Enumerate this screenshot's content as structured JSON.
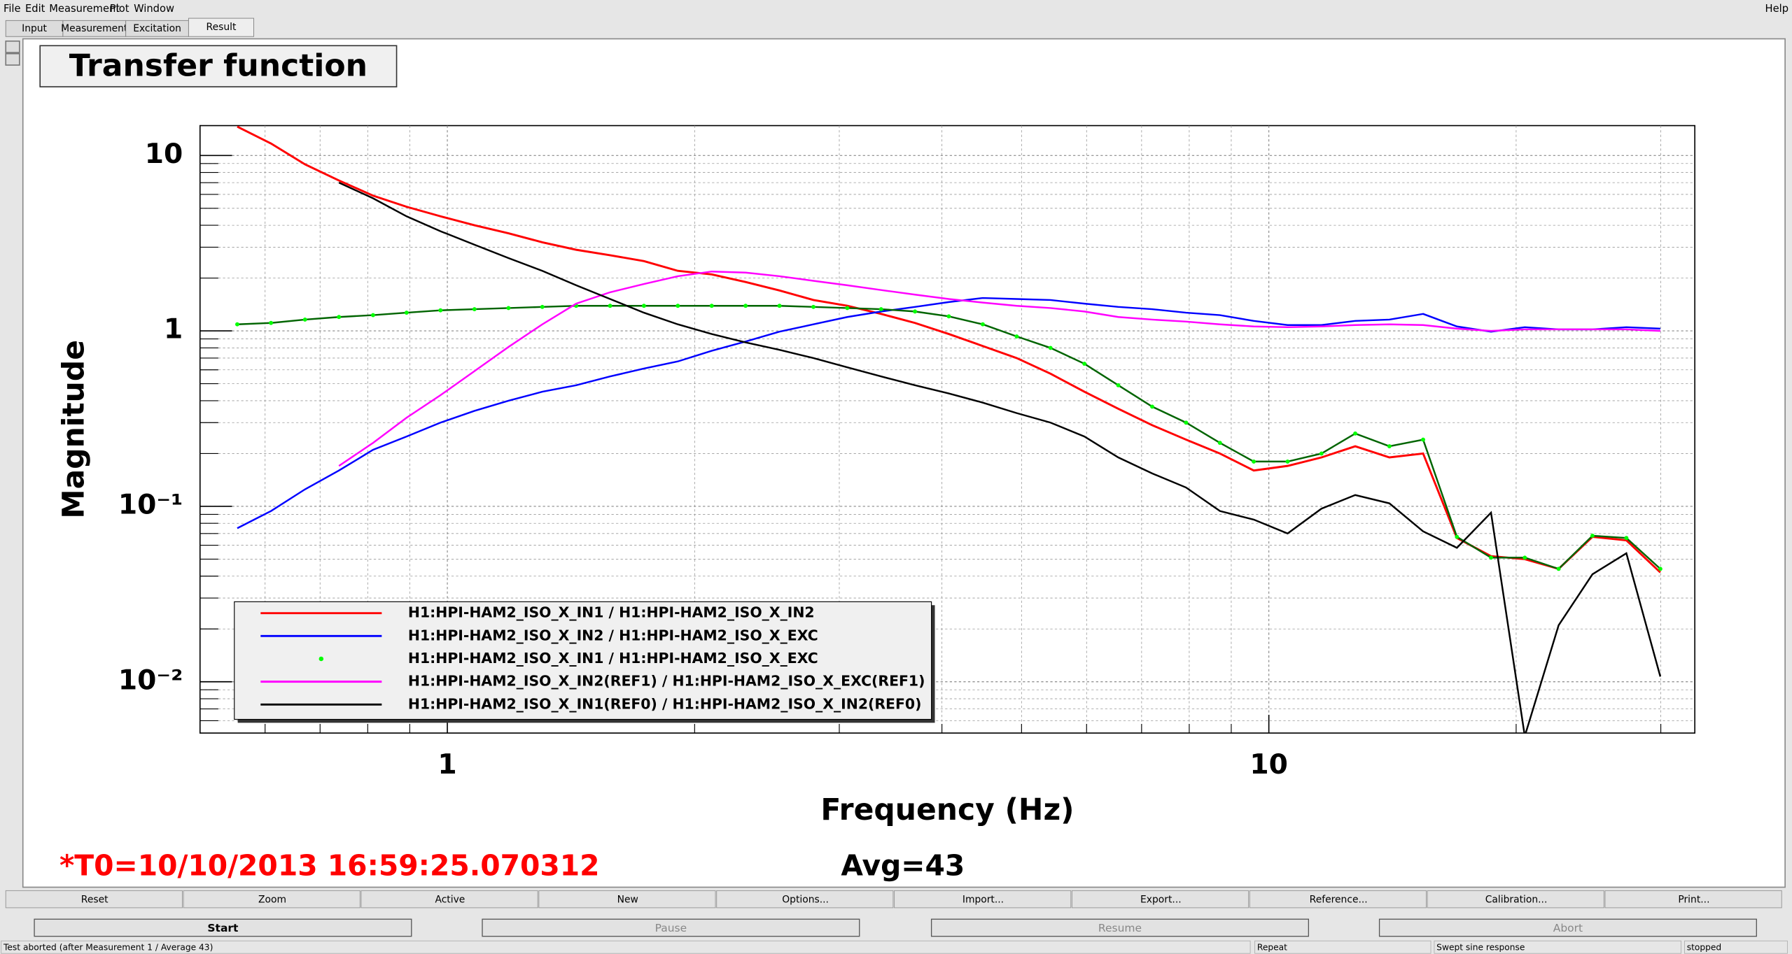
{
  "menu": [
    "File",
    "Edit",
    "Measurement",
    "Plot",
    "Window",
    "Help"
  ],
  "tabs": [
    "Input",
    "Measurement",
    "Excitation",
    "Result"
  ],
  "panel_title": "Transfer function",
  "chart_data": {
    "type": "line",
    "xlabel": "Frequency (Hz)",
    "ylabel": "Magnitude",
    "log_x": true,
    "log_y": true,
    "grid": true,
    "legend": "bottom-left",
    "xlim": [
      0.5,
      33
    ],
    "ylim": [
      0.0051,
      14.8
    ],
    "xticks": [
      1,
      10
    ],
    "yticks": [
      10,
      1,
      {
        "value": 0.1,
        "label": "10⁻¹"
      },
      {
        "value": 0.01,
        "label": "10⁻²"
      }
    ],
    "x": [
      0.555,
      0.61,
      0.671,
      0.738,
      0.812,
      0.892,
      0.981,
      1.079,
      1.187,
      1.305,
      1.435,
      1.578,
      1.735,
      1.908,
      2.098,
      2.307,
      2.537,
      2.79,
      3.068,
      3.373,
      3.709,
      4.078,
      4.485,
      4.932,
      5.423,
      5.963,
      6.557,
      7.211,
      7.929,
      8.719,
      9.586,
      10.54,
      11.59,
      12.74,
      14.02,
      15.41,
      16.94,
      18.64,
      20.49,
      22.53,
      24.77,
      27.24,
      29.96
    ],
    "series": [
      {
        "name": "H1:HPI-HAM2_ISO_X_IN1 / H1:HPI-HAM2_ISO_X_IN2",
        "color": "#ff0000",
        "values": [
          14.6,
          11.7,
          8.9,
          7.2,
          5.9,
          5.1,
          4.5,
          4.0,
          3.6,
          3.2,
          2.9,
          2.7,
          2.5,
          2.2,
          2.1,
          1.9,
          1.7,
          1.5,
          1.39,
          1.25,
          1.11,
          0.96,
          0.82,
          0.7,
          0.57,
          0.45,
          0.36,
          0.29,
          0.24,
          0.2,
          0.16,
          0.17,
          0.19,
          0.22,
          0.19,
          0.2,
          0.066,
          0.052,
          0.05,
          0.044,
          0.067,
          0.064,
          0.042
        ]
      },
      {
        "name": "H1:HPI-HAM2_ISO_X_IN2 / H1:HPI-HAM2_ISO_X_EXC",
        "color": "#0000ff",
        "values": [
          0.075,
          0.094,
          0.125,
          0.16,
          0.21,
          0.25,
          0.3,
          0.35,
          0.4,
          0.45,
          0.49,
          0.55,
          0.61,
          0.67,
          0.77,
          0.87,
          0.99,
          1.09,
          1.2,
          1.29,
          1.37,
          1.46,
          1.54,
          1.52,
          1.5,
          1.43,
          1.37,
          1.33,
          1.27,
          1.23,
          1.14,
          1.08,
          1.08,
          1.14,
          1.16,
          1.25,
          1.06,
          0.99,
          1.05,
          1.02,
          1.02,
          1.05,
          1.03
        ]
      },
      {
        "name": "H1:HPI-HAM2_ISO_X_IN1 / H1:HPI-HAM2_ISO_X_EXC",
        "color": "#00ff00",
        "line_color": "#006400",
        "marker": true,
        "values": [
          1.09,
          1.11,
          1.16,
          1.2,
          1.23,
          1.27,
          1.31,
          1.33,
          1.35,
          1.37,
          1.39,
          1.39,
          1.39,
          1.39,
          1.39,
          1.39,
          1.39,
          1.37,
          1.35,
          1.33,
          1.29,
          1.21,
          1.09,
          0.93,
          0.8,
          0.65,
          0.49,
          0.37,
          0.3,
          0.23,
          0.18,
          0.18,
          0.2,
          0.26,
          0.22,
          0.24,
          0.067,
          0.051,
          0.051,
          0.044,
          0.068,
          0.066,
          0.044
        ]
      },
      {
        "name": "H1:HPI-HAM2_ISO_X_IN2(REF1) / H1:HPI-HAM2_ISO_X_EXC(REF1)",
        "color": "#ff00ff",
        "values": [
          null,
          null,
          null,
          0.17,
          0.23,
          0.32,
          0.43,
          0.59,
          0.81,
          1.09,
          1.43,
          1.66,
          1.85,
          2.05,
          2.18,
          2.15,
          2.05,
          1.93,
          1.82,
          1.71,
          1.61,
          1.52,
          1.45,
          1.39,
          1.35,
          1.29,
          1.2,
          1.16,
          1.13,
          1.09,
          1.06,
          1.05,
          1.06,
          1.08,
          1.09,
          1.08,
          1.03,
          1.0,
          1.02,
          1.02,
          1.02,
          1.02,
          1.0
        ]
      },
      {
        "name": "H1:HPI-HAM2_ISO_X_IN1(REF0) / H1:HPI-HAM2_ISO_X_IN2(REF0)",
        "color": "#000000",
        "values": [
          null,
          null,
          null,
          7.0,
          5.7,
          4.5,
          3.7,
          3.1,
          2.6,
          2.2,
          1.82,
          1.52,
          1.27,
          1.09,
          0.96,
          0.86,
          0.78,
          0.7,
          0.62,
          0.55,
          0.49,
          0.44,
          0.39,
          0.34,
          0.3,
          0.25,
          0.19,
          0.154,
          0.128,
          0.094,
          0.084,
          0.07,
          0.097,
          0.116,
          0.104,
          0.072,
          0.058,
          0.092,
          0.0049,
          0.021,
          0.041,
          0.054,
          0.0107
        ]
      }
    ]
  },
  "t0": "*T0=10/10/2013 16:59:25.070312",
  "avg": "Avg=43",
  "toolbar": [
    "Reset",
    "Zoom",
    "Active",
    "New",
    "Options...",
    "Import...",
    "Export...",
    "Reference...",
    "Calibration...",
    "Print..."
  ],
  "controls": [
    "Start",
    "Pause",
    "Resume",
    "Abort"
  ],
  "status": [
    "Test aborted (after Measurement 1 / Average 43)",
    "Repeat",
    "Swept sine response",
    "stopped"
  ]
}
